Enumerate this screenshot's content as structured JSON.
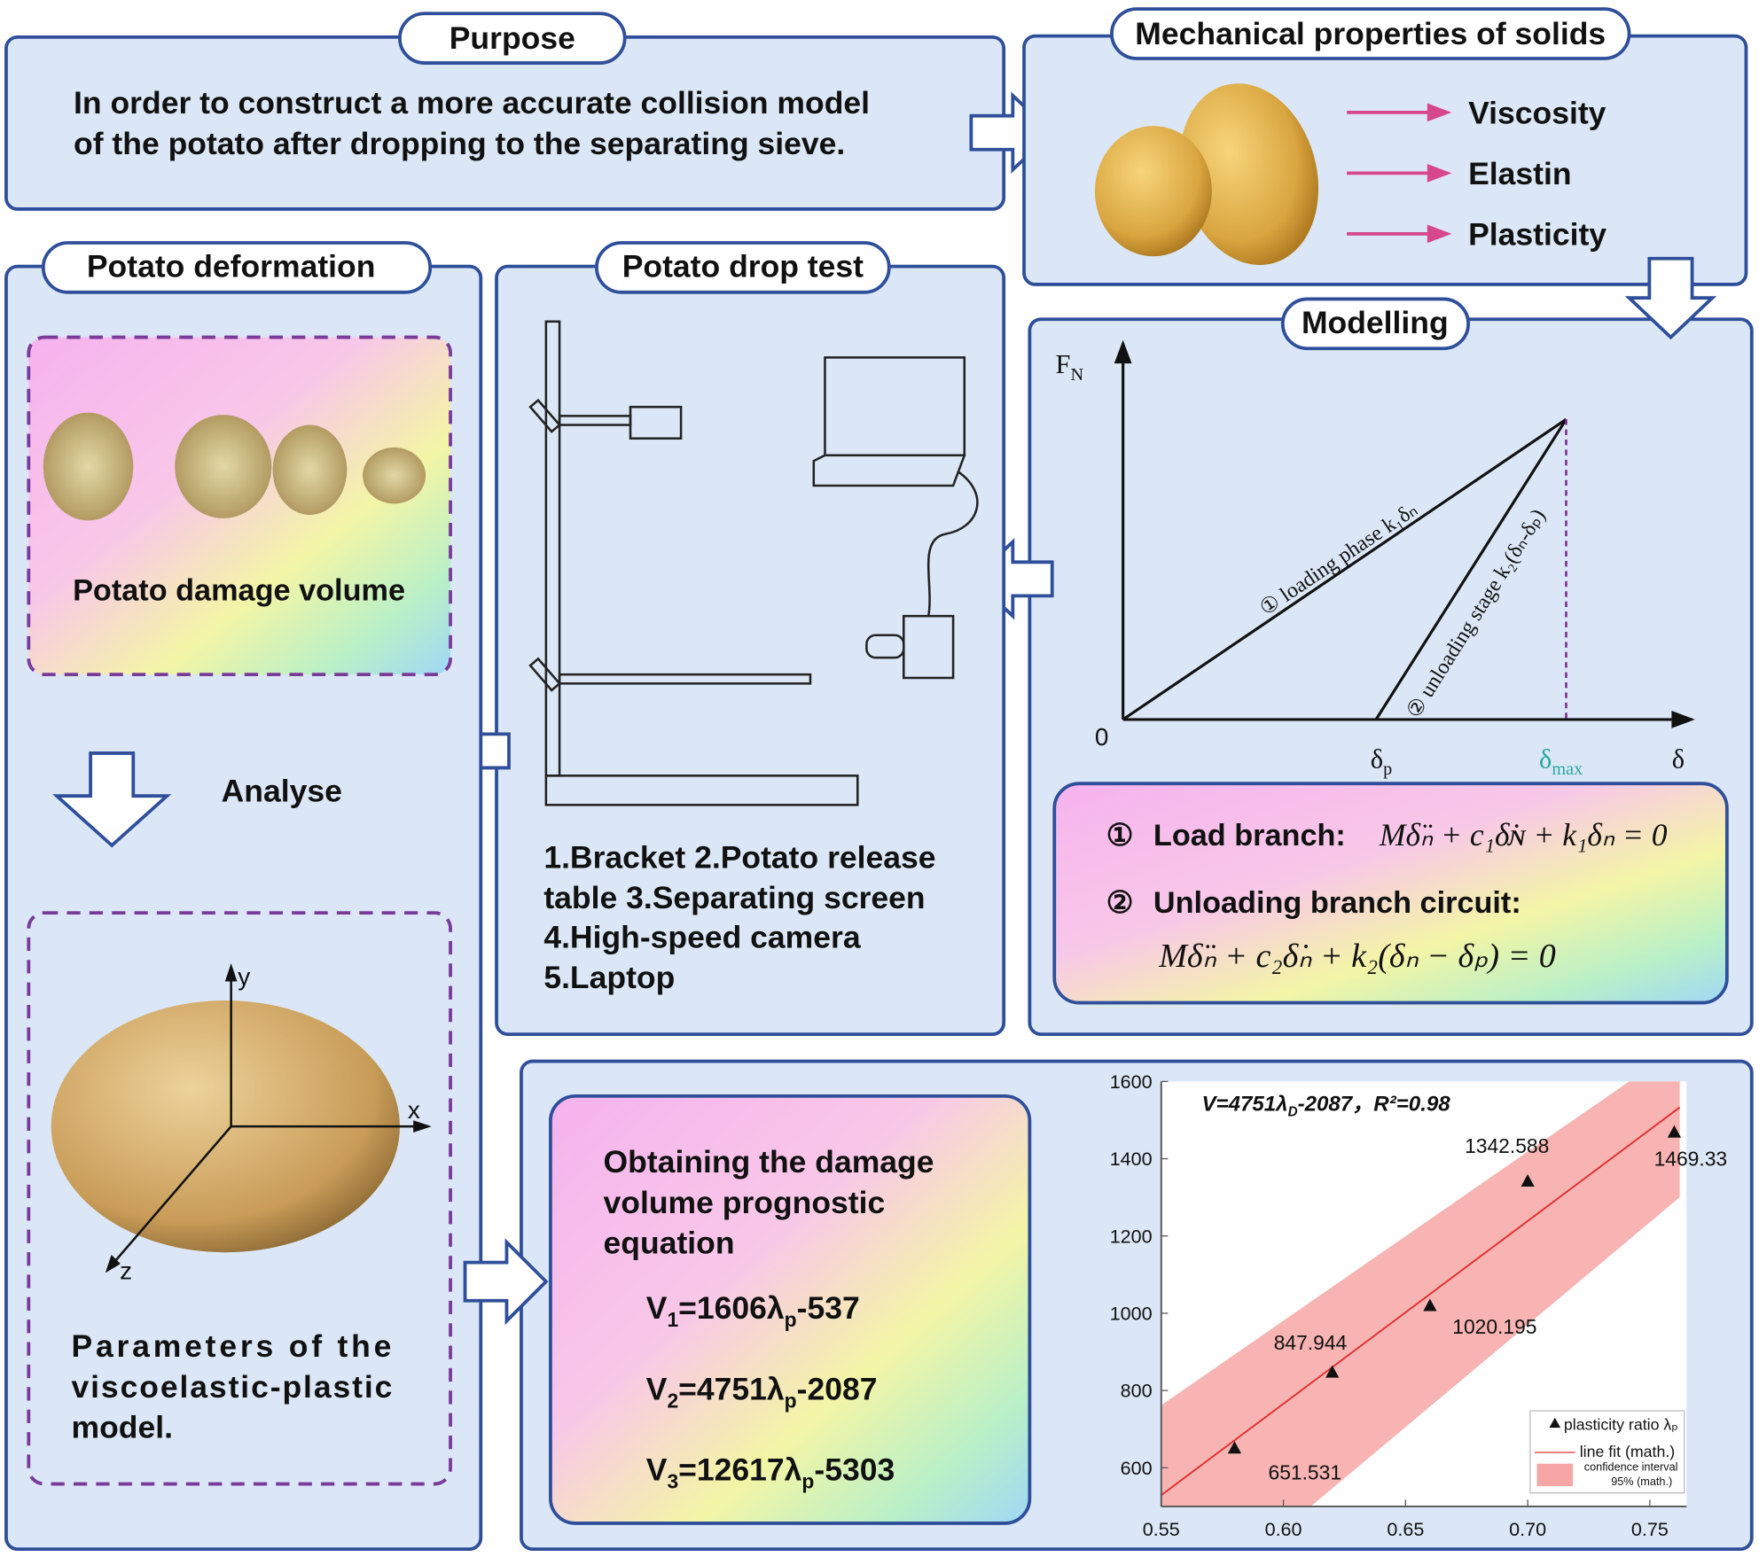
{
  "purpose": {
    "label": "Purpose",
    "text": [
      "In order to construct a more accurate collision model",
      "of the potato after dropping to the separating sieve."
    ]
  },
  "mechanical": {
    "label": "Mechanical properties of solids",
    "items": [
      "Viscosity",
      "Elastin",
      "Plasticity"
    ]
  },
  "modelling": {
    "label": "Modelling",
    "axis_y": "F",
    "axis_y_sub": "N",
    "origin": "0",
    "delta_p": "δ",
    "delta_p_sub": "p",
    "delta_max": "δ",
    "delta_max_sub": "max",
    "axis_x": "δ",
    "loading": "① loading phase k₁δₙ",
    "unloading": "② unloading stage k₂(δₙ-δₚ)",
    "load_branch": {
      "marker": "①",
      "label": "Load branch:",
      "equation": "Mδ̈ₙ + c₁δ̇ɴ + k₁δₙ = 0"
    },
    "unload_branch": {
      "marker": "②",
      "label": "Unloading branch circuit:",
      "equation": "Mδ̈ₙ + c₂δ̇ₙ + k₂(δₙ − δₚ) = 0"
    }
  },
  "drop_test": {
    "label": "Potato drop test",
    "caption": [
      "1.Bracket 2.Potato release",
      "table 3.Separating screen",
      "4.High-speed camera",
      "5.Laptop"
    ]
  },
  "deformation": {
    "label": "Potato deformation",
    "damage": "Potato damage volume",
    "analyse": "Analyse",
    "axes": [
      "y",
      "x",
      "z"
    ],
    "parameters": [
      "Parameters of the",
      "viscoelastic-plastic",
      "model."
    ]
  },
  "prognosis": {
    "title": [
      "Obtaining the damage",
      "volume prognostic",
      "equation"
    ],
    "equations": [
      {
        "v": "V",
        "i": "1",
        "mid": "=1606λ",
        "p": "p",
        "rest": "-537"
      },
      {
        "v": "V",
        "i": "2",
        "mid": "=4751λ",
        "p": "p",
        "rest": "-2087"
      },
      {
        "v": "V",
        "i": "3",
        "mid": "=12617λ",
        "p": "p",
        "rest": "-5303"
      }
    ]
  },
  "chart": {
    "type": "scatter",
    "equation": [
      "V=4751λ",
      "D",
      "-2087，R²=0.98"
    ],
    "x": [
      0.58,
      0.62,
      0.66,
      0.7,
      0.76
    ],
    "y": [
      651.531,
      847.944,
      1020.195,
      1342.588,
      1469.33
    ],
    "xlim": [
      0.55,
      0.765
    ],
    "ylim": [
      500,
      1600
    ],
    "xticks": [
      0.55,
      {
        "value": 0.6,
        "label": "0.60"
      },
      0.65,
      {
        "value": 0.7,
        "label": "0.70"
      },
      0.75
    ],
    "yticks": [
      600,
      800,
      1000,
      1200,
      1400,
      1600
    ],
    "legend": {
      "points": "plasticity ratio λₚ",
      "fit": "line fit (math.)",
      "band": [
        "confidence interval",
        "95% (math.)"
      ]
    },
    "point_color": "#111111",
    "fit_color": "#e03030",
    "band_color": "#f7a6a6"
  }
}
